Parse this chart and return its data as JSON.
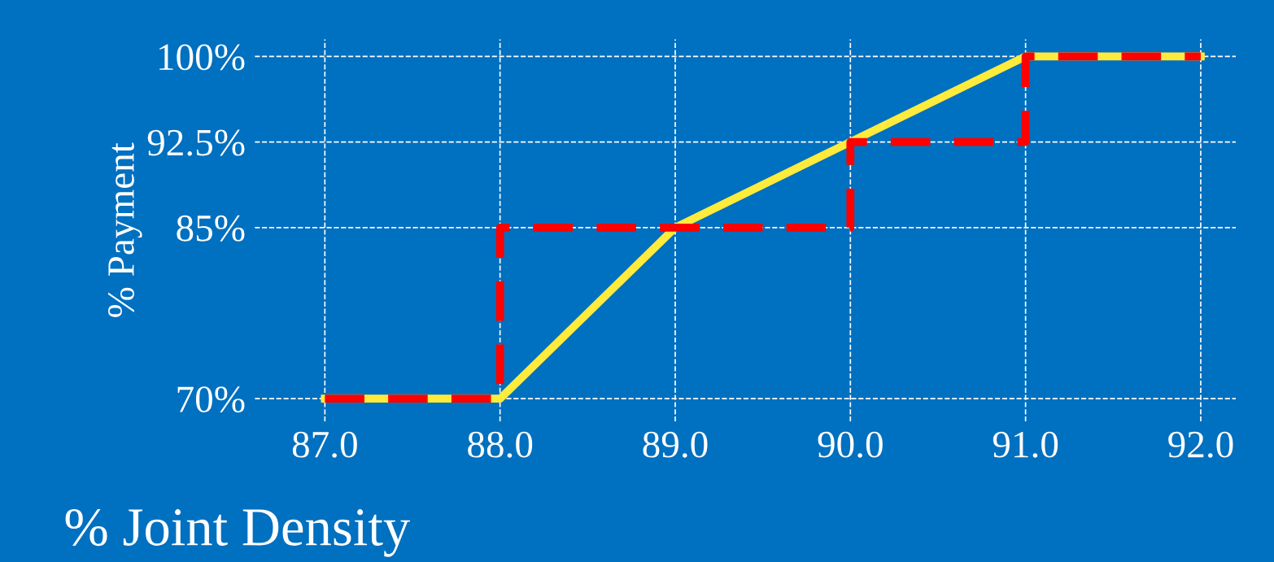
{
  "chart_data": {
    "type": "line",
    "xlabel": "% Joint Density",
    "ylabel": "% Payment",
    "xlim": [
      86.6,
      92.2
    ],
    "ylim": [
      68,
      101.5
    ],
    "xticks": [
      {
        "value": 87,
        "label": "87.0"
      },
      {
        "value": 88,
        "label": "88.0"
      },
      {
        "value": 89,
        "label": "89.0"
      },
      {
        "value": 90,
        "label": "90.0"
      },
      {
        "value": 91,
        "label": "91.0"
      },
      {
        "value": 92,
        "label": "92.0"
      }
    ],
    "yticks": [
      {
        "value": 70,
        "label": "70%"
      },
      {
        "value": 85,
        "label": "85%"
      },
      {
        "value": 92.5,
        "label": "92.5%"
      },
      {
        "value": 100,
        "label": "100%"
      }
    ],
    "grid": true,
    "series": [
      {
        "color": "#ffeb3b",
        "line_style": "solid",
        "x": [
          87,
          88,
          89,
          91,
          92
        ],
        "values": [
          70,
          70,
          85,
          100,
          100
        ]
      },
      {
        "type": "step",
        "color": "#ff0000",
        "line_style": "dashed",
        "x": [
          87,
          88,
          90,
          91,
          92
        ],
        "values": [
          70,
          85,
          92.5,
          100,
          100
        ]
      }
    ]
  }
}
